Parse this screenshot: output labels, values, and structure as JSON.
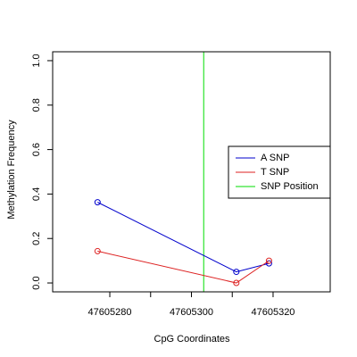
{
  "chart_data": {
    "type": "line",
    "title": "",
    "xlabel": "CpG Coordinates",
    "ylabel": "Methylation Frequency",
    "xlim": [
      47605266,
      47605334
    ],
    "ylim": [
      -0.04,
      1.04
    ],
    "x_ticks": [
      47605280,
      47605290,
      47605300,
      47605310,
      47605320
    ],
    "x_tick_labels": [
      "47605280",
      "",
      "47605300",
      "",
      "47605320"
    ],
    "y_ticks": [
      0.0,
      0.2,
      0.4,
      0.6,
      0.8,
      1.0
    ],
    "y_tick_labels": [
      "0.0",
      "0.2",
      "0.4",
      "0.6",
      "0.8",
      "1.0"
    ],
    "grid": false,
    "legend_position": "right",
    "series": [
      {
        "name": "A SNP",
        "color": "#0000cc",
        "x": [
          47605277,
          47605311,
          47605319
        ],
        "y": [
          0.363,
          0.05,
          0.088
        ]
      },
      {
        "name": "T SNP",
        "color": "#dd2222",
        "x": [
          47605277,
          47605311,
          47605319
        ],
        "y": [
          0.143,
          0.0,
          0.1
        ]
      }
    ],
    "vlines": [
      {
        "name": "SNP Position",
        "color": "#00dd00",
        "x": 47605303
      }
    ],
    "legend": [
      "A SNP",
      "T SNP",
      "SNP Position"
    ]
  }
}
